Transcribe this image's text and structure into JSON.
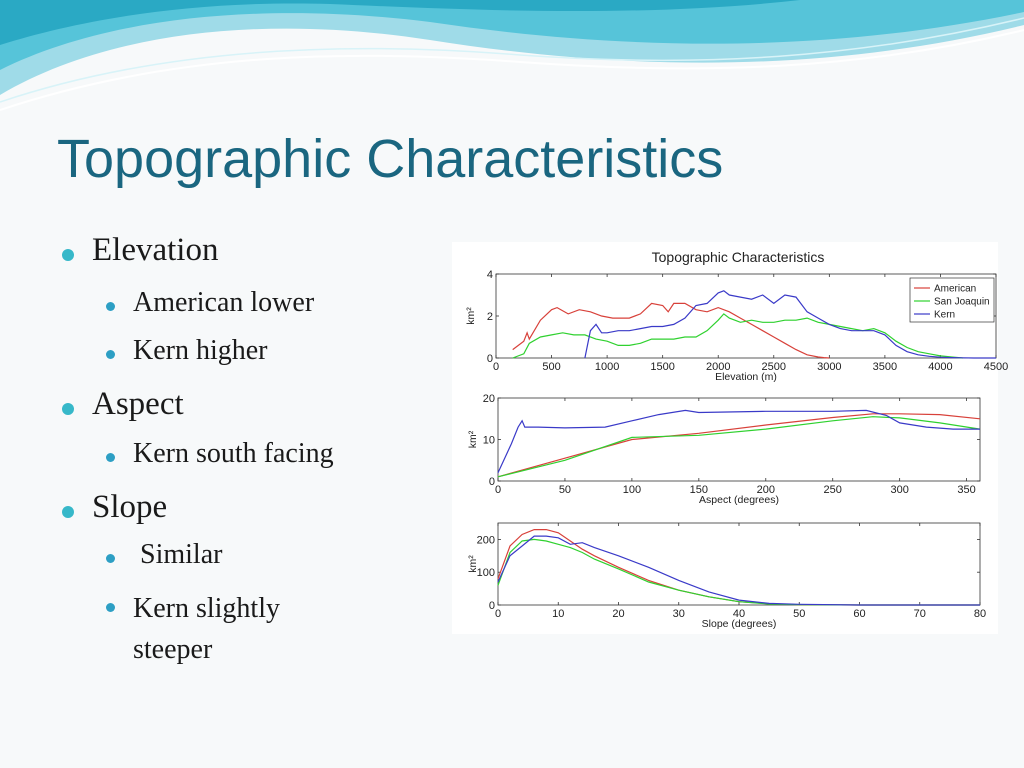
{
  "slide": {
    "title": "Topographic Characteristics",
    "bullets": [
      {
        "text": "Elevation",
        "sub": [
          "American lower",
          "Kern higher"
        ]
      },
      {
        "text": "Aspect",
        "sub": [
          "Kern south facing"
        ]
      },
      {
        "text": "Slope",
        "sub": [
          " Similar",
          "Kern slightly steeper"
        ]
      }
    ]
  },
  "colors": {
    "title": "#1a6680",
    "bullet": "#37b8c9",
    "American": "#d8413a",
    "San Joaquin": "#2fd12f",
    "Kern": "#3a3ac8"
  },
  "chart_data": [
    {
      "type": "line",
      "title": "Topographic Characteristics",
      "xlabel": "Elevation (m)",
      "ylabel": "km²",
      "xlim": [
        0,
        4500
      ],
      "ylim": [
        0,
        4
      ],
      "xticks": [
        0,
        500,
        1000,
        1500,
        2000,
        2500,
        3000,
        3500,
        4000,
        4500
      ],
      "yticks": [
        0,
        2,
        4
      ],
      "legend": {
        "placement": "top-right",
        "entries": [
          "American",
          "San Joaquin",
          "Kern"
        ]
      },
      "series": [
        {
          "name": "American",
          "color": "#d8413a",
          "x": [
            150,
            250,
            280,
            300,
            400,
            500,
            550,
            650,
            750,
            850,
            950,
            1050,
            1200,
            1300,
            1400,
            1500,
            1550,
            1600,
            1700,
            1800,
            1900,
            2000,
            2100,
            2200,
            2300,
            2400,
            2500,
            2600,
            2700,
            2800,
            2900,
            2950,
            3000
          ],
          "y": [
            0.4,
            0.8,
            1.2,
            0.9,
            1.8,
            2.3,
            2.4,
            2.1,
            2.3,
            2.2,
            2.0,
            1.9,
            1.9,
            2.1,
            2.6,
            2.5,
            2.2,
            2.6,
            2.6,
            2.3,
            2.2,
            2.4,
            2.2,
            1.9,
            1.6,
            1.3,
            1.0,
            0.7,
            0.4,
            0.15,
            0.05,
            0.02,
            0
          ]
        },
        {
          "name": "San Joaquin",
          "color": "#2fd12f",
          "x": [
            150,
            250,
            300,
            400,
            500,
            600,
            700,
            800,
            900,
            1000,
            1100,
            1200,
            1300,
            1400,
            1500,
            1600,
            1700,
            1800,
            1900,
            2000,
            2050,
            2100,
            2150,
            2200,
            2300,
            2400,
            2500,
            2600,
            2700,
            2800,
            2900,
            3000,
            3100,
            3200,
            3300,
            3400,
            3500,
            3600,
            3700,
            3800,
            3900,
            4000,
            4100,
            4200
          ],
          "y": [
            0,
            0.2,
            0.7,
            1.0,
            1.1,
            1.2,
            1.1,
            1.1,
            0.9,
            0.8,
            0.6,
            0.6,
            0.7,
            0.9,
            0.9,
            0.9,
            1.0,
            1.0,
            1.3,
            1.8,
            2.1,
            1.9,
            1.8,
            1.7,
            1.8,
            1.7,
            1.7,
            1.8,
            1.8,
            1.9,
            1.7,
            1.6,
            1.5,
            1.4,
            1.3,
            1.4,
            1.2,
            0.8,
            0.5,
            0.3,
            0.2,
            0.1,
            0.05,
            0
          ]
        },
        {
          "name": "Kern",
          "color": "#3a3ac8",
          "x": [
            800,
            850,
            900,
            950,
            1000,
            1100,
            1200,
            1300,
            1400,
            1500,
            1600,
            1700,
            1800,
            1900,
            2000,
            2050,
            2100,
            2200,
            2300,
            2400,
            2500,
            2600,
            2700,
            2800,
            2900,
            3000,
            3100,
            3200,
            3300,
            3400,
            3500,
            3600,
            3700,
            3800,
            3900,
            4000,
            4100,
            4200,
            4300,
            4400,
            4500
          ],
          "y": [
            0,
            1.3,
            1.6,
            1.2,
            1.2,
            1.3,
            1.3,
            1.4,
            1.5,
            1.5,
            1.6,
            1.9,
            2.5,
            2.6,
            3.1,
            3.2,
            3.0,
            2.9,
            2.8,
            3.0,
            2.6,
            3.0,
            2.9,
            2.2,
            1.9,
            1.6,
            1.4,
            1.3,
            1.3,
            1.3,
            1.1,
            0.6,
            0.3,
            0.15,
            0.08,
            0.04,
            0.02,
            0.01,
            0,
            0,
            0
          ]
        }
      ]
    },
    {
      "type": "line",
      "title": "",
      "xlabel": "Aspect (degrees)",
      "ylabel": "km²",
      "xlim": [
        0,
        360
      ],
      "ylim": [
        0,
        20
      ],
      "xticks": [
        0,
        50,
        100,
        150,
        200,
        250,
        300,
        350
      ],
      "yticks": [
        0,
        10,
        20
      ],
      "series": [
        {
          "name": "American",
          "color": "#d8413a",
          "x": [
            0,
            50,
            100,
            150,
            200,
            250,
            280,
            300,
            330,
            360
          ],
          "y": [
            1,
            5.5,
            10,
            11.5,
            13.5,
            15.3,
            16.2,
            16.2,
            16,
            15
          ]
        },
        {
          "name": "San Joaquin",
          "color": "#2fd12f",
          "x": [
            0,
            50,
            100,
            150,
            200,
            250,
            280,
            300,
            330,
            360
          ],
          "y": [
            1,
            5,
            10.5,
            11,
            12.5,
            14.5,
            15.5,
            15.2,
            14,
            12.5
          ]
        },
        {
          "name": "Kern",
          "color": "#3a3ac8",
          "x": [
            0,
            10,
            15,
            18,
            20,
            30,
            50,
            80,
            100,
            120,
            140,
            150,
            200,
            250,
            275,
            290,
            300,
            320,
            340,
            360
          ],
          "y": [
            2,
            9,
            13,
            14.5,
            13,
            13,
            12.8,
            13,
            14.5,
            16,
            17,
            16.5,
            16.8,
            16.8,
            17,
            15.8,
            14,
            13,
            12.5,
            12.5
          ]
        }
      ]
    },
    {
      "type": "line",
      "title": "",
      "xlabel": "Slope (degrees)",
      "ylabel": "km²",
      "xlim": [
        0,
        80
      ],
      "ylim": [
        0,
        250
      ],
      "xticks": [
        0,
        10,
        20,
        30,
        40,
        50,
        60,
        70,
        80
      ],
      "yticks": [
        0,
        100,
        200
      ],
      "series": [
        {
          "name": "American",
          "color": "#d8413a",
          "x": [
            0,
            2,
            4,
            6,
            8,
            10,
            12,
            14,
            16,
            20,
            25,
            30,
            35,
            40,
            45,
            50,
            60,
            70,
            80
          ],
          "y": [
            80,
            180,
            215,
            230,
            230,
            220,
            195,
            170,
            150,
            115,
            75,
            45,
            25,
            10,
            4,
            1,
            0,
            0,
            0
          ]
        },
        {
          "name": "San Joaquin",
          "color": "#2fd12f",
          "x": [
            0,
            2,
            4,
            6,
            8,
            10,
            12,
            14,
            16,
            20,
            25,
            30,
            35,
            40,
            45,
            50,
            60,
            70,
            80
          ],
          "y": [
            60,
            160,
            195,
            200,
            195,
            185,
            175,
            160,
            140,
            110,
            70,
            45,
            25,
            10,
            3,
            1,
            0,
            0,
            0
          ]
        },
        {
          "name": "Kern",
          "color": "#3a3ac8",
          "x": [
            0,
            2,
            4,
            6,
            8,
            10,
            12,
            14,
            16,
            20,
            25,
            30,
            35,
            40,
            45,
            50,
            60,
            70,
            80
          ],
          "y": [
            70,
            150,
            180,
            210,
            210,
            205,
            185,
            190,
            175,
            150,
            115,
            75,
            40,
            15,
            5,
            2,
            0,
            0,
            0
          ]
        }
      ]
    }
  ]
}
